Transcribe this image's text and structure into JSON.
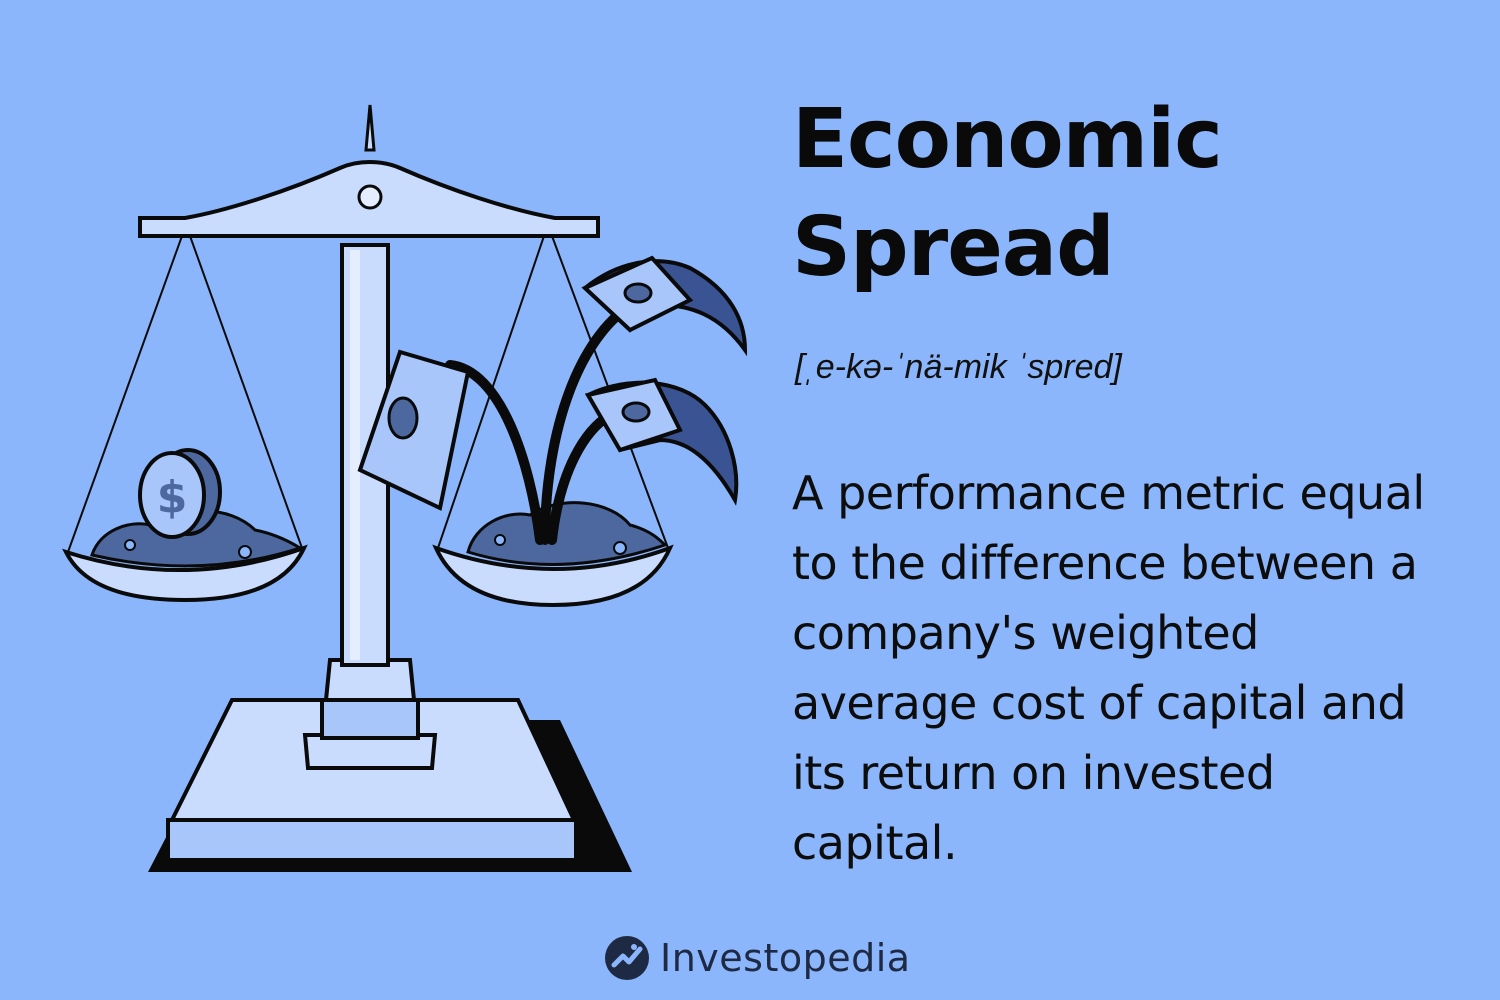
{
  "title": {
    "line1": "Economic",
    "line2": "Spread"
  },
  "pronunciation": "[ˌe-kə-ˈnä-mik ˈspred]",
  "definition": "A performance metric equal to the difference between a company's weighted average cost of capital and its return on invested capital.",
  "brand": {
    "name": "Investopedia"
  },
  "colors": {
    "background": "#8cb6fb",
    "scale_light": "#c9dcfd",
    "scale_mid": "#a9c6fb",
    "soil": "#4d679f",
    "bill_dark": "#3a5392",
    "outline": "#0a0a0a"
  },
  "icons": [
    "balance-scale-icon",
    "coin-icon",
    "money-bill-icon",
    "investopedia-logo-icon"
  ]
}
